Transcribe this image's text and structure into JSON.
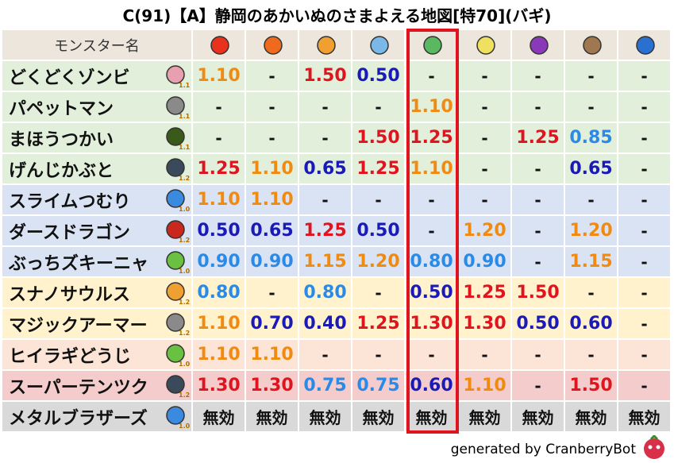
{
  "title": "C(91)【A】静岡のあかいぬのさまよえる地図[特70](バギ)",
  "table": {
    "header": "モンスター名",
    "rows": [
      {
        "name": "どくどくゾンビ",
        "level": "1.1",
        "values": [
          "1.10",
          "-",
          "1.50",
          "0.50",
          "-",
          "-",
          "-",
          "-",
          "-"
        ]
      },
      {
        "name": "パペットマン",
        "level": "1.1",
        "values": [
          "-",
          "-",
          "-",
          "-",
          "1.10",
          "-",
          "-",
          "-",
          "-"
        ]
      },
      {
        "name": "まほうつかい",
        "level": "1.1",
        "values": [
          "-",
          "-",
          "-",
          "1.50",
          "1.25",
          "-",
          "1.25",
          "0.85",
          "-"
        ]
      },
      {
        "name": "げんじかぶと",
        "level": "1.2",
        "values": [
          "1.25",
          "1.10",
          "0.65",
          "1.25",
          "1.10",
          "-",
          "-",
          "0.65",
          "-"
        ]
      },
      {
        "name": "スライムつむり",
        "level": "1.0",
        "values": [
          "1.10",
          "1.10",
          "-",
          "-",
          "-",
          "-",
          "-",
          "-",
          "-"
        ]
      },
      {
        "name": "ダースドラゴン",
        "level": "1.2",
        "values": [
          "0.50",
          "0.65",
          "1.25",
          "0.50",
          "-",
          "1.20",
          "-",
          "1.20",
          "-"
        ]
      },
      {
        "name": "ぶっちズキーニャ",
        "level": "1.0",
        "values": [
          "0.90",
          "0.90",
          "1.15",
          "1.20",
          "0.80",
          "0.90",
          "-",
          "1.15",
          "-"
        ]
      },
      {
        "name": "スナノサウルス",
        "level": "1.2",
        "values": [
          "0.80",
          "-",
          "0.80",
          "-",
          "0.50",
          "1.25",
          "1.50",
          "-",
          "-"
        ]
      },
      {
        "name": "マジックアーマー",
        "level": "1.2",
        "values": [
          "1.10",
          "0.70",
          "0.40",
          "1.25",
          "1.30",
          "1.30",
          "0.50",
          "0.60",
          "-"
        ]
      },
      {
        "name": "ヒイラギどうじ",
        "level": "1.0",
        "values": [
          "1.10",
          "1.10",
          "-",
          "-",
          "-",
          "-",
          "-",
          "-",
          "-"
        ]
      },
      {
        "name": "スーパーテンツク",
        "level": "1.2",
        "values": [
          "1.30",
          "1.30",
          "0.75",
          "0.75",
          "0.60",
          "1.10",
          "-",
          "1.50",
          "-"
        ]
      },
      {
        "name": "メタルブラザーズ",
        "level": "1.0",
        "values": [
          "無効",
          "無効",
          "無効",
          "無効",
          "無効",
          "無効",
          "無効",
          "無効",
          "無効"
        ]
      }
    ]
  },
  "footer": "generated by CranberryBot"
}
